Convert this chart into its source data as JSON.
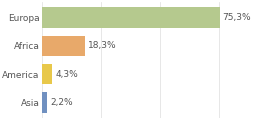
{
  "categories": [
    "Europa",
    "Africa",
    "America",
    "Asia"
  ],
  "values": [
    75.3,
    18.3,
    4.3,
    2.2
  ],
  "labels": [
    "75,3%",
    "18,3%",
    "4,3%",
    "2,2%"
  ],
  "bar_colors": [
    "#b5c98e",
    "#e8a96a",
    "#e8c84a",
    "#7090c0"
  ],
  "background_color": "#ffffff",
  "xlim": [
    0,
    100
  ],
  "bar_height": 0.72,
  "label_fontsize": 6.5,
  "tick_fontsize": 6.5,
  "grid_color": "#dddddd",
  "grid_lw": 0.5,
  "xticks": [
    0,
    25,
    50,
    75,
    100
  ],
  "label_color": "#555555",
  "tick_color": "#555555"
}
